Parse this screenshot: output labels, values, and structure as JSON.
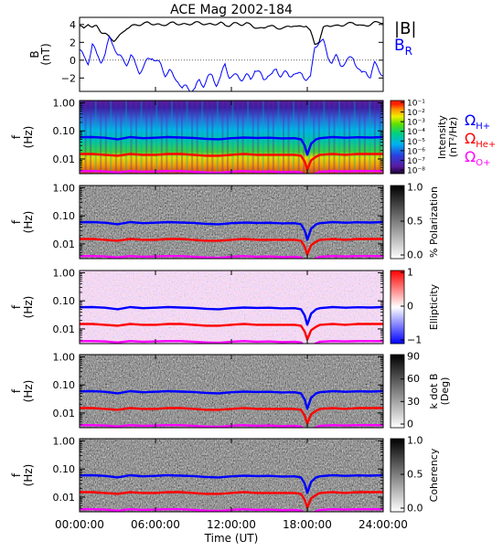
{
  "title": "ACE Mag 2002-184",
  "chart_data": [
    {
      "type": "line",
      "ylabel_line1": "B",
      "ylabel_line2": "(nT)",
      "ylim": [
        -3.5,
        4.8
      ],
      "y_ticks": [
        "4",
        "2",
        "0",
        "−2"
      ],
      "y_tick_values": [
        4,
        2,
        0,
        -2
      ],
      "legend": [
        "|B|",
        "B",
        "R"
      ],
      "series": [
        {
          "name": "|B|",
          "color": "#000000",
          "values": [
            3.9,
            3.5,
            4.1,
            3.7,
            3.8,
            3.2,
            3.0,
            2.5,
            2.2,
            2.6,
            3.0,
            3.6,
            3.8,
            3.9,
            4.0,
            4.1,
            4.2,
            4.1,
            4.0,
            3.9,
            4.0,
            4.1,
            4.2,
            4.1,
            4.0,
            4.0,
            4.1,
            4.2,
            4.2,
            4.1,
            4.0,
            4.0,
            4.1,
            4.2,
            3.9,
            3.9,
            4.1,
            4.1,
            4.0,
            4.1,
            4.0,
            3.7,
            3.5,
            3.6,
            3.9,
            3.8,
            3.6,
            3.6,
            3.6,
            3.8,
            3.9,
            3.7,
            3.8,
            3.9,
            3.2,
            1.8,
            2.1,
            3.6,
            3.9,
            3.9,
            3.8,
            3.9,
            4.0,
            4.1,
            4.2,
            4.0,
            3.8,
            3.9,
            4.0,
            4.2,
            4.3,
            4.2
          ]
        },
        {
          "name": "B R",
          "color": "#0000ff",
          "values": [
            1.2,
            0.2,
            -0.2,
            1.8,
            0.5,
            0.0,
            0.7,
            2.4,
            1.8,
            0.5,
            0.0,
            -0.3,
            0.5,
            -0.5,
            -1.2,
            -0.8,
            0.0,
            0.5,
            -0.2,
            -0.6,
            -1.5,
            -1.2,
            -2.0,
            -2.1,
            -3.3,
            -3.0,
            -3.2,
            -3.3,
            -2.3,
            -2.7,
            -2.0,
            -1.8,
            -2.6,
            -2.0,
            -0.5,
            -1.7,
            -1.9,
            -1.8,
            -2.0,
            -1.8,
            -2.2,
            -0.9,
            -1.5,
            -2.2,
            -1.5,
            -1.8,
            -1.0,
            -1.6,
            -1.5,
            -1.8,
            -1.3,
            -1.8,
            -1.5,
            -2.0,
            -2.1,
            1.5,
            2.2,
            2.0,
            0.5,
            -0.1,
            0.3,
            -0.5,
            -0.2,
            0.0,
            0.3,
            -0.7,
            -1.7,
            -1.2,
            -1.8,
            -0.5,
            -1.0,
            -1.6
          ]
        }
      ]
    },
    {
      "type": "heatmap",
      "ylabel_line1": "f",
      "ylabel_line2": "(Hz)",
      "colorbar_title_line1": "Intensity",
      "colorbar_title_line2": "(nT²/Hz)",
      "colorbar_ticks": [
        "10⁻¹",
        "10⁻²",
        "10⁻³",
        "10⁻⁴",
        "10⁻⁵",
        "10⁻⁶",
        "10⁻⁷",
        "10⁻⁸"
      ],
      "scale": "log",
      "legend": [
        {
          "symbol": "Ω",
          "sub": "H+",
          "color": "#0000ff"
        },
        {
          "symbol": "Ω",
          "sub": "He+",
          "color": "#ff0000"
        },
        {
          "symbol": "Ω",
          "sub": "O+",
          "color": "#ff00ff"
        }
      ]
    },
    {
      "type": "heatmap",
      "ylabel_line1": "f",
      "ylabel_line2": "(Hz)",
      "colorbar_title_line1": "% Polarization",
      "colorbar_title_line2": "",
      "colorbar_ticks": [
        "1.0",
        "0.5",
        "0.0"
      ]
    },
    {
      "type": "heatmap",
      "ylabel_line1": "f",
      "ylabel_line2": "(Hz)",
      "colorbar_title_line1": "Ellipticity",
      "colorbar_title_line2": "",
      "colorbar_ticks": [
        "1",
        "0",
        "−1"
      ]
    },
    {
      "type": "heatmap",
      "ylabel_line1": "f",
      "ylabel_line2": "(Hz)",
      "colorbar_title_line1": "k dot B",
      "colorbar_title_line2": "(Deg)",
      "colorbar_ticks": [
        "90",
        "60",
        "30",
        "0"
      ]
    },
    {
      "type": "heatmap",
      "ylabel_line1": "f",
      "ylabel_line2": "(Hz)",
      "colorbar_title_line1": "Coherency",
      "colorbar_title_line2": "",
      "colorbar_ticks": [
        "1.0",
        "0.5",
        "0.0"
      ]
    }
  ],
  "freq_axis": {
    "scale": "log",
    "ylim": [
      0.003,
      1.2
    ],
    "ticks": [
      "1.00",
      "0.10",
      "0.01"
    ],
    "tick_values": [
      1.0,
      0.1,
      0.01
    ]
  },
  "gyro_lines": {
    "hours": [
      0,
      1,
      2,
      3,
      4,
      5,
      6,
      7,
      8,
      9,
      10,
      11,
      12,
      13,
      14,
      15,
      16,
      17,
      17.5,
      17.8,
      18,
      18.3,
      18.7,
      19,
      20,
      21,
      22,
      23,
      24
    ],
    "H+": [
      0.059,
      0.06,
      0.057,
      0.05,
      0.06,
      0.055,
      0.057,
      0.06,
      0.058,
      0.056,
      0.052,
      0.05,
      0.055,
      0.058,
      0.056,
      0.057,
      0.054,
      0.055,
      0.05,
      0.03,
      0.014,
      0.035,
      0.05,
      0.055,
      0.06,
      0.057,
      0.059,
      0.058,
      0.06
    ],
    "He+": [
      0.015,
      0.015,
      0.014,
      0.013,
      0.015,
      0.014,
      0.014,
      0.015,
      0.015,
      0.014,
      0.013,
      0.013,
      0.014,
      0.015,
      0.014,
      0.014,
      0.014,
      0.014,
      0.013,
      0.008,
      0.0042,
      0.009,
      0.012,
      0.014,
      0.015,
      0.014,
      0.015,
      0.015,
      0.015
    ],
    "O+": [
      0.0037,
      0.0037,
      0.0036,
      0.0033,
      0.0037,
      0.0035,
      0.0036,
      0.0037,
      0.0037,
      0.0035,
      0.0033,
      0.0032,
      0.0035,
      0.0037,
      0.0035,
      0.0036,
      0.0034,
      0.0035,
      0.0033,
      0.0025,
      0.002,
      0.0025,
      0.0031,
      0.0035,
      0.0037,
      0.0036,
      0.0037,
      0.0037,
      0.0037
    ]
  },
  "time_axis": {
    "xlim": [
      0,
      24
    ],
    "ticks": [
      "00:00:00",
      "06:00:00",
      "12:00:00",
      "18:00:00",
      "24:00:00"
    ],
    "tick_values": [
      0,
      6,
      12,
      18,
      24
    ],
    "label": "Time (UT)"
  }
}
